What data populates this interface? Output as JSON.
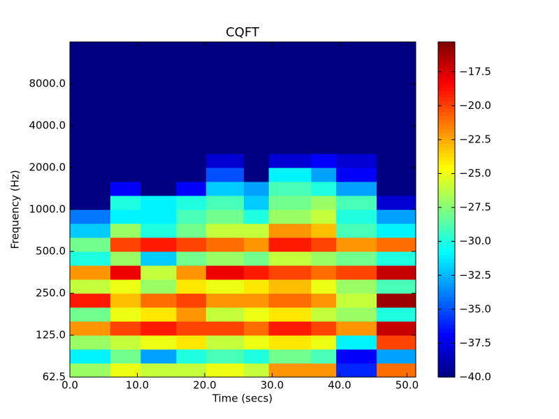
{
  "chart_data": {
    "type": "heatmap",
    "title": "CQFT",
    "xlabel": "Time (secs)",
    "ylabel": "Frequency (Hz)",
    "x_edges": [
      0,
      6,
      10.5,
      15.8,
      20.2,
      25.8,
      29.5,
      35.8,
      39.5,
      45.5,
      51.3
    ],
    "y_edges": [
      62.5,
      78.7,
      99.2,
      125,
      157.5,
      198.4,
      250,
      315,
      396.9,
      500,
      630,
      793.7,
      1000,
      1260,
      1587,
      2000,
      2520,
      3175,
      4000,
      5040,
      6350,
      8000,
      10079,
      12699,
      16000
    ],
    "values": [
      [
        -27,
        -25,
        -26,
        -26,
        -25,
        -26,
        -22,
        -22,
        -36,
        -21
      ],
      [
        -31,
        -28,
        -33,
        -30,
        -29,
        -30,
        -28,
        -29,
        -37,
        -33
      ],
      [
        -27,
        -26,
        -25,
        -24,
        -26,
        -25,
        -24,
        -25,
        -31,
        -20
      ],
      [
        -22,
        -20,
        -19,
        -20,
        -20,
        -21,
        -19,
        -20,
        -22,
        -17
      ],
      [
        -28,
        -25,
        -24,
        -22,
        -26,
        -25,
        -24,
        -26,
        -27,
        -30
      ],
      [
        -19,
        -23,
        -21,
        -20,
        -22,
        -22,
        -21,
        -22,
        -26,
        -16
      ],
      [
        -26,
        -25,
        -27,
        -24,
        -25,
        -24,
        -23,
        -25,
        -27,
        -29
      ],
      [
        -22,
        -18,
        -26,
        -22,
        -18,
        -19,
        -20,
        -21,
        -20,
        -17
      ],
      [
        -30,
        -27,
        -32,
        -28,
        -27,
        -28,
        -26,
        -27,
        -28,
        -30
      ],
      [
        -28,
        -20,
        -19,
        -20,
        -21,
        -22,
        -19,
        -20,
        -22,
        -21
      ],
      [
        -32,
        -27,
        -30,
        -28,
        -26,
        -26,
        -22,
        -23,
        -29,
        -31
      ],
      [
        -34,
        -31,
        -31,
        -29,
        -28,
        -30,
        -27,
        -26,
        -30,
        -33
      ],
      [
        -40,
        -30,
        -31,
        -30,
        -29,
        -32,
        -28,
        -27,
        -29,
        -38
      ],
      [
        -40,
        -37,
        -40,
        -37,
        -32,
        -33,
        -29,
        -30,
        -33,
        -40
      ],
      [
        -40,
        -40,
        -40,
        -40,
        -35,
        -40,
        -31,
        -33,
        -37,
        -40
      ],
      [
        -40,
        -40,
        -40,
        -40,
        -38,
        -40,
        -38,
        -37,
        -38,
        -40
      ],
      [
        -40,
        -40,
        -40,
        -40,
        -40,
        -40,
        -40,
        -40,
        -40,
        -40
      ],
      [
        -40,
        -40,
        -40,
        -40,
        -40,
        -40,
        -40,
        -40,
        -40,
        -40
      ],
      [
        -40,
        -40,
        -40,
        -40,
        -40,
        -40,
        -40,
        -40,
        -40,
        -40
      ],
      [
        -40,
        -40,
        -40,
        -40,
        -40,
        -40,
        -40,
        -40,
        -40,
        -40
      ],
      [
        -40,
        -40,
        -40,
        -40,
        -40,
        -40,
        -40,
        -40,
        -40,
        -40
      ],
      [
        -40,
        -40,
        -40,
        -40,
        -40,
        -40,
        -40,
        -40,
        -40,
        -40
      ],
      [
        -40,
        -40,
        -40,
        -40,
        -40,
        -40,
        -40,
        -40,
        -40,
        -40
      ],
      [
        -40,
        -40,
        -40,
        -40,
        -40,
        -40,
        -40,
        -40,
        -40,
        -40
      ]
    ],
    "colormap": "jet",
    "xlim": [
      0,
      51.3
    ],
    "xticks": [
      {
        "value": 0,
        "label": "0.0"
      },
      {
        "value": 10,
        "label": "10.0"
      },
      {
        "value": 20,
        "label": "20.0"
      },
      {
        "value": 30,
        "label": "30.0"
      },
      {
        "value": 40,
        "label": "40.0"
      },
      {
        "value": 50,
        "label": "50.0"
      }
    ],
    "ylim": [
      62.5,
      16000
    ],
    "ylog": true,
    "yticks": [
      62.5,
      {
        "value": 125,
        "label": "125.0"
      },
      {
        "value": 250,
        "label": "250.0"
      },
      {
        "value": 500,
        "label": "500.0"
      },
      {
        "value": 1000,
        "label": "1000.0"
      },
      {
        "value": 2000,
        "label": "2000.0"
      },
      {
        "value": 4000,
        "label": "4000.0"
      },
      {
        "value": 8000,
        "label": "8000.0"
      }
    ],
    "clim": [
      -40,
      -15.3
    ],
    "cticks": [
      {
        "value": -40,
        "label": "−40.0"
      },
      {
        "value": -37.5,
        "label": "−37.5"
      },
      {
        "value": -35,
        "label": "−35.0"
      },
      {
        "value": -32.5,
        "label": "−32.5"
      },
      {
        "value": -30,
        "label": "−30.0"
      },
      {
        "value": -27.5,
        "label": "−27.5"
      },
      {
        "value": -25,
        "label": "−25.0"
      },
      {
        "value": -22.5,
        "label": "−22.5"
      },
      {
        "value": -20,
        "label": "−20.0"
      },
      {
        "value": -17.5,
        "label": "−17.5"
      }
    ]
  }
}
